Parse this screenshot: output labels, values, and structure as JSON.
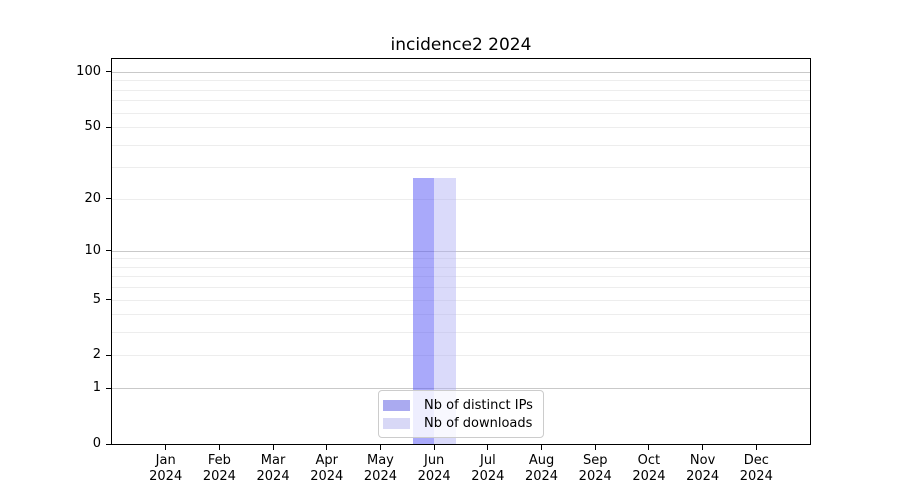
{
  "chart_data": {
    "type": "bar",
    "title": "incidence2 2024",
    "categories": [
      "Jan",
      "Feb",
      "Mar",
      "Apr",
      "May",
      "Jun",
      "Jul",
      "Aug",
      "Sep",
      "Oct",
      "Nov",
      "Dec"
    ],
    "category_year": "2024",
    "series": [
      {
        "name": "Nb of distinct IPs",
        "bar_color": "rgba(83,83,245,0.5)",
        "legend_color": "#aaaaf0",
        "values": [
          0,
          0,
          0,
          0,
          0,
          26,
          0,
          0,
          0,
          0,
          0,
          0
        ]
      },
      {
        "name": "Nb of downloads",
        "bar_color": "rgba(173,173,244,0.45)",
        "legend_color": "#d8d8f6",
        "values": [
          0,
          0,
          0,
          0,
          0,
          26,
          0,
          0,
          0,
          0,
          0,
          0
        ]
      }
    ],
    "yscale": "log1p",
    "ylim": [
      0,
      117.6
    ],
    "yticks": [
      0,
      1,
      2,
      5,
      10,
      20,
      50,
      100
    ],
    "major_gridlines": [
      1,
      10,
      100
    ],
    "minor_gridlines": [
      2,
      3,
      4,
      5,
      6,
      7,
      8,
      9,
      20,
      30,
      40,
      50,
      60,
      70,
      80,
      90
    ],
    "grid_color_major": "#c9c9c9",
    "grid_color_minor": "#ededed",
    "legend_position": "bottom-center",
    "xlabel": "",
    "ylabel": ""
  }
}
